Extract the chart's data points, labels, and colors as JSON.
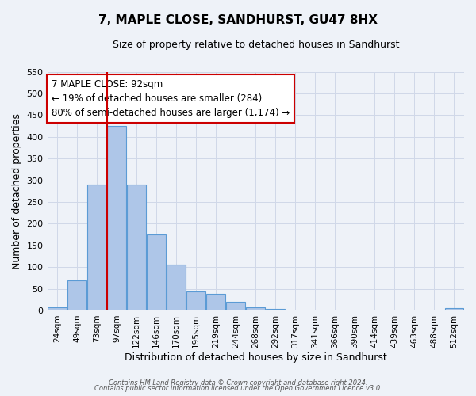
{
  "title": "7, MAPLE CLOSE, SANDHURST, GU47 8HX",
  "subtitle": "Size of property relative to detached houses in Sandhurst",
  "xlabel": "Distribution of detached houses by size in Sandhurst",
  "ylabel": "Number of detached properties",
  "bar_labels": [
    "24sqm",
    "49sqm",
    "73sqm",
    "97sqm",
    "122sqm",
    "146sqm",
    "170sqm",
    "195sqm",
    "219sqm",
    "244sqm",
    "268sqm",
    "292sqm",
    "317sqm",
    "341sqm",
    "366sqm",
    "390sqm",
    "414sqm",
    "439sqm",
    "463sqm",
    "488sqm",
    "512sqm"
  ],
  "bar_values": [
    8,
    70,
    290,
    425,
    290,
    175,
    106,
    44,
    38,
    20,
    7,
    3,
    0,
    0,
    0,
    0,
    0,
    0,
    0,
    0,
    5
  ],
  "bar_color": "#aec6e8",
  "bar_edge_color": "#5b9bd5",
  "vline_x_index": 3,
  "vline_color": "#cc0000",
  "ylim": [
    0,
    550
  ],
  "yticks": [
    0,
    50,
    100,
    150,
    200,
    250,
    300,
    350,
    400,
    450,
    500,
    550
  ],
  "annotation_title": "7 MAPLE CLOSE: 92sqm",
  "annotation_line1": "← 19% of detached houses are smaller (284)",
  "annotation_line2": "80% of semi-detached houses are larger (1,174) →",
  "annotation_box_color": "#ffffff",
  "annotation_box_edge": "#cc0000",
  "grid_color": "#d0d8e8",
  "bg_color": "#eef2f8",
  "footer1": "Contains HM Land Registry data © Crown copyright and database right 2024.",
  "footer2": "Contains public sector information licensed under the Open Government Licence v3.0."
}
